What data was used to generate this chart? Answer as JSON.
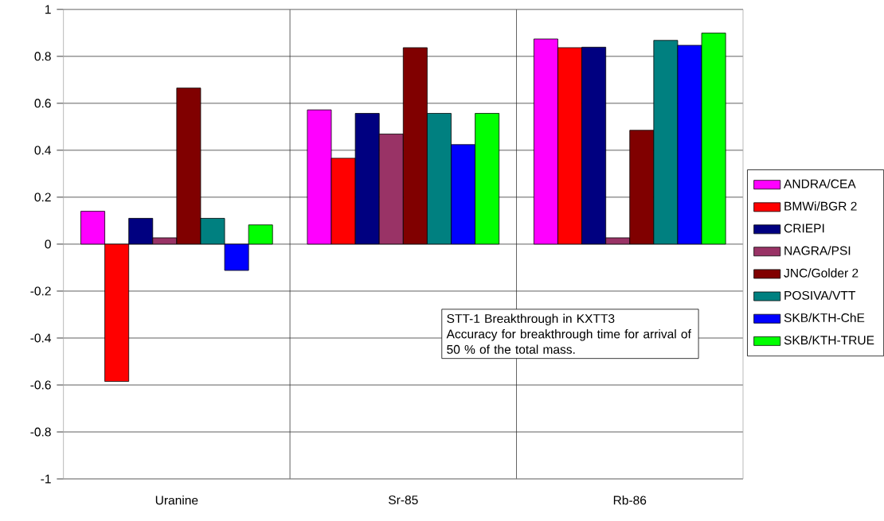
{
  "chart_data": {
    "type": "bar",
    "categories": [
      "Uranine",
      "Sr-85",
      "Rb-86"
    ],
    "series": [
      {
        "name": "ANDRA/CEA",
        "color": "#ff00ff",
        "values": [
          0.14,
          0.572,
          0.874
        ]
      },
      {
        "name": "BMWi/BGR 2",
        "color": "#ff0000",
        "values": [
          -0.585,
          0.366,
          0.837
        ]
      },
      {
        "name": "CRIEPI",
        "color": "#000080",
        "values": [
          0.11,
          0.557,
          0.839
        ]
      },
      {
        "name": "NAGRA/PSI",
        "color": "#993366",
        "values": [
          0.027,
          0.469,
          0.027
        ]
      },
      {
        "name": "JNC/Golder 2",
        "color": "#800000",
        "values": [
          0.665,
          0.837,
          0.485
        ]
      },
      {
        "name": "POSIVA/VTT",
        "color": "#008080",
        "values": [
          0.11,
          0.557,
          0.868
        ]
      },
      {
        "name": "SKB/KTH-ChE",
        "color": "#0000ff",
        "values": [
          -0.112,
          0.424,
          0.847
        ]
      },
      {
        "name": "SKB/KTH-TRUE",
        "color": "#00ff00",
        "values": [
          0.082,
          0.557,
          0.899
        ]
      }
    ],
    "ylim": [
      -1,
      1
    ],
    "yticks": [
      -1,
      -0.8,
      -0.6,
      -0.4,
      -0.2,
      0,
      0.2,
      0.4,
      0.6,
      0.8,
      1
    ],
    "grid": true,
    "legend": "right",
    "annotations": [
      "STT-1 Breakthrough in KXTT3",
      "Accuracy for breakthrough time for arrival of 50 % of the total mass."
    ]
  }
}
